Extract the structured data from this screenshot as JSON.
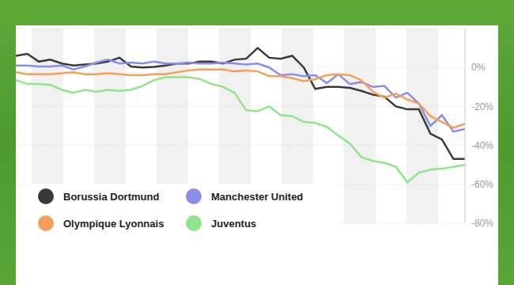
{
  "chart_data": {
    "type": "line",
    "categories": [
      null,
      null,
      null,
      null,
      null,
      null,
      null,
      null,
      null,
      null,
      null,
      null,
      null,
      null,
      null,
      null,
      null,
      null,
      null,
      null,
      null,
      null,
      null,
      null,
      null,
      null,
      null,
      null,
      null,
      null,
      null,
      null,
      null,
      null,
      null,
      null,
      null,
      null,
      null,
      null
    ],
    "series": [
      {
        "name": "Borussia Dortmund",
        "color": "#3a3a3a",
        "values": [
          6,
          7,
          3,
          4,
          2,
          1,
          1.5,
          2,
          3,
          5,
          0.5,
          0,
          0.3,
          1,
          2,
          2,
          3,
          3,
          2,
          4,
          4.5,
          10,
          5,
          4.5,
          6,
          0,
          -11,
          -10,
          -10,
          -10.5,
          -12,
          -14,
          -15,
          -20,
          -21.5,
          -21.5,
          -34,
          -37,
          -47,
          -47
        ]
      },
      {
        "name": "Manchester United",
        "color": "#8a8ee8",
        "values": [
          1,
          1,
          0.5,
          0.5,
          1,
          -1,
          0.5,
          2.5,
          4,
          2,
          2.5,
          2,
          3,
          2,
          2,
          2.5,
          2,
          2,
          2.5,
          2,
          1.5,
          2,
          0,
          -4,
          -3.5,
          -4.5,
          -4,
          -8,
          -3.5,
          -8.5,
          -7.5,
          -10,
          -9.5,
          -15.5,
          -13,
          -18.5,
          -30,
          -24.5,
          -33,
          -31.5
        ]
      },
      {
        "name": "Olympique Lyonnais",
        "color": "#f5a05a",
        "values": [
          -2.5,
          -3.5,
          -3.5,
          -3.5,
          -3,
          -2.5,
          -3.5,
          -3.5,
          -3,
          -3.5,
          -4,
          -4,
          -3.5,
          -3.5,
          -2.5,
          -1.5,
          -1,
          -1,
          -1,
          -2,
          -1.5,
          -2,
          -4.5,
          -4.5,
          -5.5,
          -7,
          -6,
          -4,
          -3.5,
          -4,
          -6.5,
          -12.5,
          -15.5,
          -13.5,
          -16.5,
          -18.5,
          -25,
          -28,
          -31,
          -29
        ]
      },
      {
        "name": "Juventus",
        "color": "#8ee58a",
        "values": [
          -6.5,
          -8.5,
          -8.5,
          -9,
          -11.5,
          -13,
          -11.5,
          -12.5,
          -11.5,
          -12,
          -11.5,
          -9.5,
          -6.5,
          -5,
          -5,
          -5,
          -6,
          -8.5,
          -10,
          -13,
          -22,
          -22.5,
          -20,
          -24.5,
          -25,
          -28,
          -28.5,
          -30.5,
          -35,
          -39,
          -46,
          -48,
          -49,
          -51,
          -59,
          -54,
          -52.5,
          -52,
          -51,
          -50
        ]
      }
    ],
    "ylim": [
      -80,
      20
    ],
    "yticks": [
      {
        "value": -80,
        "label": "-80%"
      },
      {
        "value": -60,
        "label": "-60%"
      },
      {
        "value": -40,
        "label": "-40%"
      },
      {
        "value": -20,
        "label": "-20%"
      },
      {
        "value": 0,
        "label": "0%"
      }
    ],
    "grid": true,
    "legend": "lower left",
    "tick_labels": "y"
  }
}
